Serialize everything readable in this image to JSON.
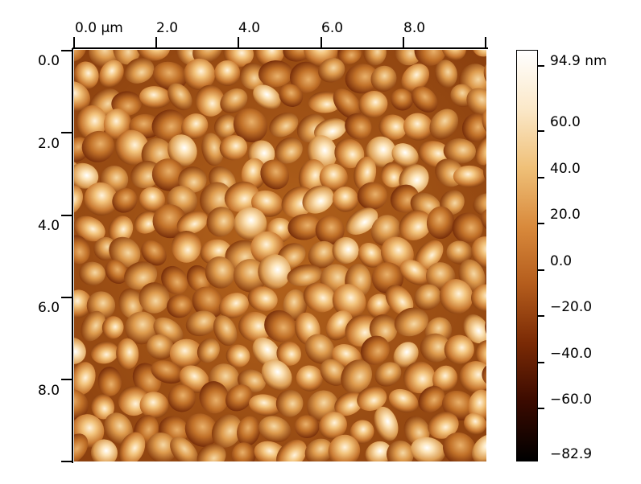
{
  "x_axis": {
    "ticks": [
      "0.0 µm",
      "2.0",
      "4.0",
      "6.0",
      "8.0"
    ]
  },
  "y_axis": {
    "ticks": [
      "0.0",
      "2.0",
      "4.0",
      "6.0",
      "8.0"
    ]
  },
  "colorbar": {
    "ticks": [
      "94.9 nm",
      "60.0",
      "40.0",
      "20.0",
      "0.0",
      "−20.0",
      "−40.0",
      "−60.0",
      "−82.9"
    ],
    "min": -82.9,
    "max": 94.9,
    "colors": [
      "#000000",
      "#3a0a00",
      "#7a2a05",
      "#b45c1c",
      "#d98a3c",
      "#efc078",
      "#fbe8c8",
      "#ffffff"
    ]
  }
}
